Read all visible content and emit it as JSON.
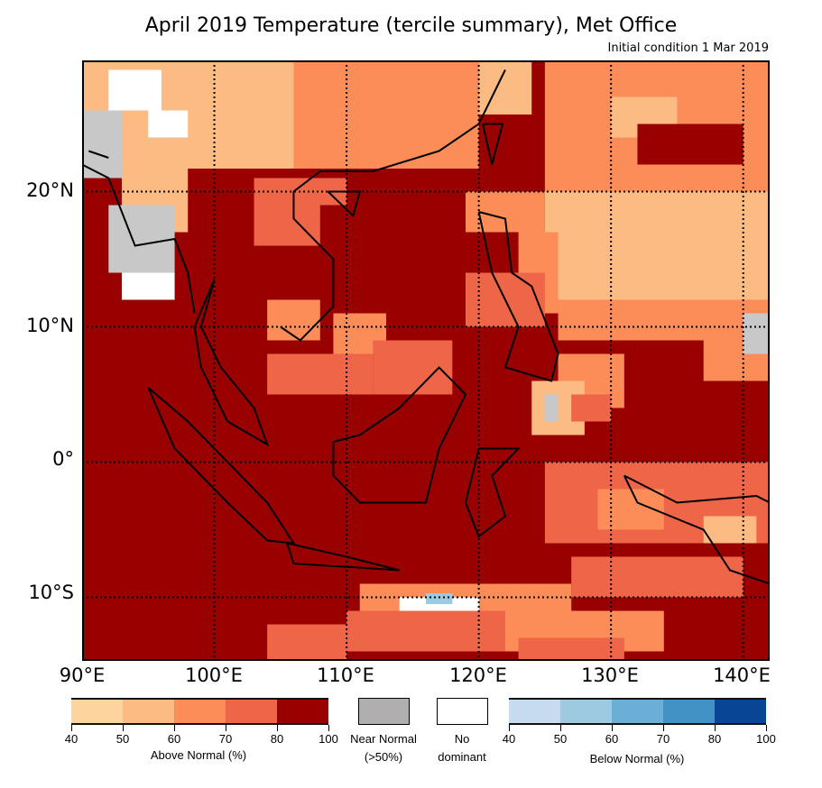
{
  "title": "April 2019 Temperature (tercile summary), Met Office",
  "subtitle": "Initial condition 1 Mar 2019",
  "map": {
    "lon_range": [
      90,
      142
    ],
    "lat_range": [
      -14.7,
      29.7
    ],
    "lat_labels": [
      "20°N",
      "10°N",
      "0°",
      "10°S"
    ],
    "lon_labels": [
      "90°E",
      "100°E",
      "110°E",
      "120°E",
      "130°E",
      "140°E"
    ],
    "gridlines": "dotted every 10°",
    "dominant_category": "Above Normal"
  },
  "legend": {
    "above": {
      "label": "Above Normal (%)",
      "ticks": [
        "40",
        "50",
        "60",
        "70",
        "80",
        "100"
      ],
      "colors": [
        "#fdd49e",
        "#fdbb84",
        "#fc8d59",
        "#ef6548",
        "#990000"
      ]
    },
    "near": {
      "label1": "Near Normal",
      "label2": "(>50%)",
      "color": "#b0aeae"
    },
    "none": {
      "label1": "No",
      "label2": "dominant",
      "color": "#ffffff"
    },
    "below": {
      "label": "Below Normal (%)",
      "ticks": [
        "40",
        "50",
        "60",
        "70",
        "80",
        "100"
      ],
      "colors": [
        "#c6dbef",
        "#9ecae1",
        "#6baed6",
        "#4292c6",
        "#084594"
      ]
    }
  }
}
